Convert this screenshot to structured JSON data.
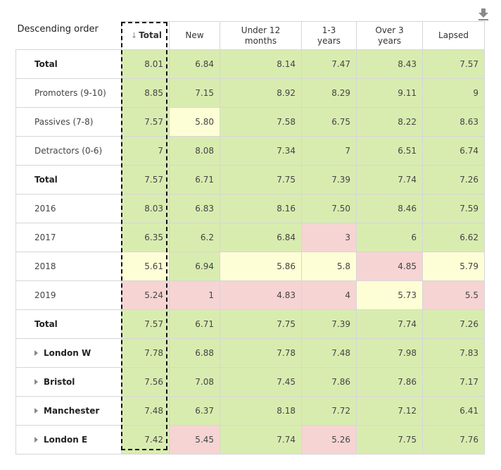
{
  "toolbar": {
    "download_icon": "download-icon"
  },
  "table": {
    "corner_label": "Descending order",
    "sort_arrow": "↓",
    "columns": [
      "Total",
      "New",
      "Under 12 months",
      "1-3 years",
      "Over 3 years",
      "Lapsed"
    ],
    "colors": {
      "green": "#d9ecb0",
      "yellow": "#fefed6",
      "red": "#f6d4d4",
      "white": "#ffffff"
    },
    "rows": [
      {
        "label": "Total",
        "bold": true,
        "expandable": false,
        "values": [
          "8.01",
          "6.84",
          "8.14",
          "7.47",
          "8.43",
          "7.57"
        ],
        "colors": [
          "green",
          "green",
          "green",
          "green",
          "green",
          "green"
        ]
      },
      {
        "label": "Promoters (9-10)",
        "bold": false,
        "expandable": false,
        "values": [
          "8.85",
          "7.15",
          "8.92",
          "8.29",
          "9.11",
          "9"
        ],
        "colors": [
          "green",
          "green",
          "green",
          "green",
          "green",
          "green"
        ]
      },
      {
        "label": "Passives (7-8)",
        "bold": false,
        "expandable": false,
        "values": [
          "7.57",
          "5.80",
          "7.58",
          "6.75",
          "8.22",
          "8.63"
        ],
        "colors": [
          "green",
          "yellow",
          "green",
          "green",
          "green",
          "green"
        ]
      },
      {
        "label": "Detractors (0-6)",
        "bold": false,
        "expandable": false,
        "values": [
          "7",
          "8.08",
          "7.34",
          "7",
          "6.51",
          "6.74"
        ],
        "colors": [
          "green",
          "green",
          "green",
          "green",
          "green",
          "green"
        ]
      },
      {
        "label": "Total",
        "bold": true,
        "expandable": false,
        "values": [
          "7.57",
          "6.71",
          "7.75",
          "7.39",
          "7.74",
          "7.26"
        ],
        "colors": [
          "green",
          "green",
          "green",
          "green",
          "green",
          "green"
        ]
      },
      {
        "label": "2016",
        "bold": false,
        "expandable": false,
        "values": [
          "8.03",
          "6.83",
          "8.16",
          "7.50",
          "8.46",
          "7.59"
        ],
        "colors": [
          "green",
          "green",
          "green",
          "green",
          "green",
          "green"
        ]
      },
      {
        "label": "2017",
        "bold": false,
        "expandable": false,
        "values": [
          "6.35",
          "6.2",
          "6.84",
          "3",
          "6",
          "6.62"
        ],
        "colors": [
          "green",
          "green",
          "green",
          "red",
          "green",
          "green"
        ]
      },
      {
        "label": "2018",
        "bold": false,
        "expandable": false,
        "values": [
          "5.61",
          "6.94",
          "5.86",
          "5.8",
          "4.85",
          "5.79"
        ],
        "colors": [
          "yellow",
          "green",
          "yellow",
          "yellow",
          "red",
          "yellow"
        ]
      },
      {
        "label": "2019",
        "bold": false,
        "expandable": false,
        "values": [
          "5.24",
          "1",
          "4.83",
          "4",
          "5.73",
          "5.5"
        ],
        "colors": [
          "red",
          "red",
          "red",
          "red",
          "yellow",
          "red"
        ]
      },
      {
        "label": "Total",
        "bold": true,
        "expandable": false,
        "values": [
          "7.57",
          "6.71",
          "7.75",
          "7.39",
          "7.74",
          "7.26"
        ],
        "colors": [
          "green",
          "green",
          "green",
          "green",
          "green",
          "green"
        ]
      },
      {
        "label": "London W",
        "bold": true,
        "expandable": true,
        "values": [
          "7.78",
          "6.88",
          "7.78",
          "7.48",
          "7.98",
          "7.83"
        ],
        "colors": [
          "green",
          "green",
          "green",
          "green",
          "green",
          "green"
        ]
      },
      {
        "label": "Bristol",
        "bold": true,
        "expandable": true,
        "values": [
          "7.56",
          "7.08",
          "7.45",
          "7.86",
          "7.86",
          "7.17"
        ],
        "colors": [
          "green",
          "green",
          "green",
          "green",
          "green",
          "green"
        ]
      },
      {
        "label": "Manchester",
        "bold": true,
        "expandable": true,
        "values": [
          "7.48",
          "6.37",
          "8.18",
          "7.72",
          "7.12",
          "6.41"
        ],
        "colors": [
          "green",
          "green",
          "green",
          "green",
          "green",
          "green"
        ]
      },
      {
        "label": "London E",
        "bold": true,
        "expandable": true,
        "values": [
          "7.42",
          "5.45",
          "7.74",
          "5.26",
          "7.75",
          "7.76"
        ],
        "colors": [
          "green",
          "red",
          "green",
          "red",
          "green",
          "green"
        ]
      }
    ]
  }
}
